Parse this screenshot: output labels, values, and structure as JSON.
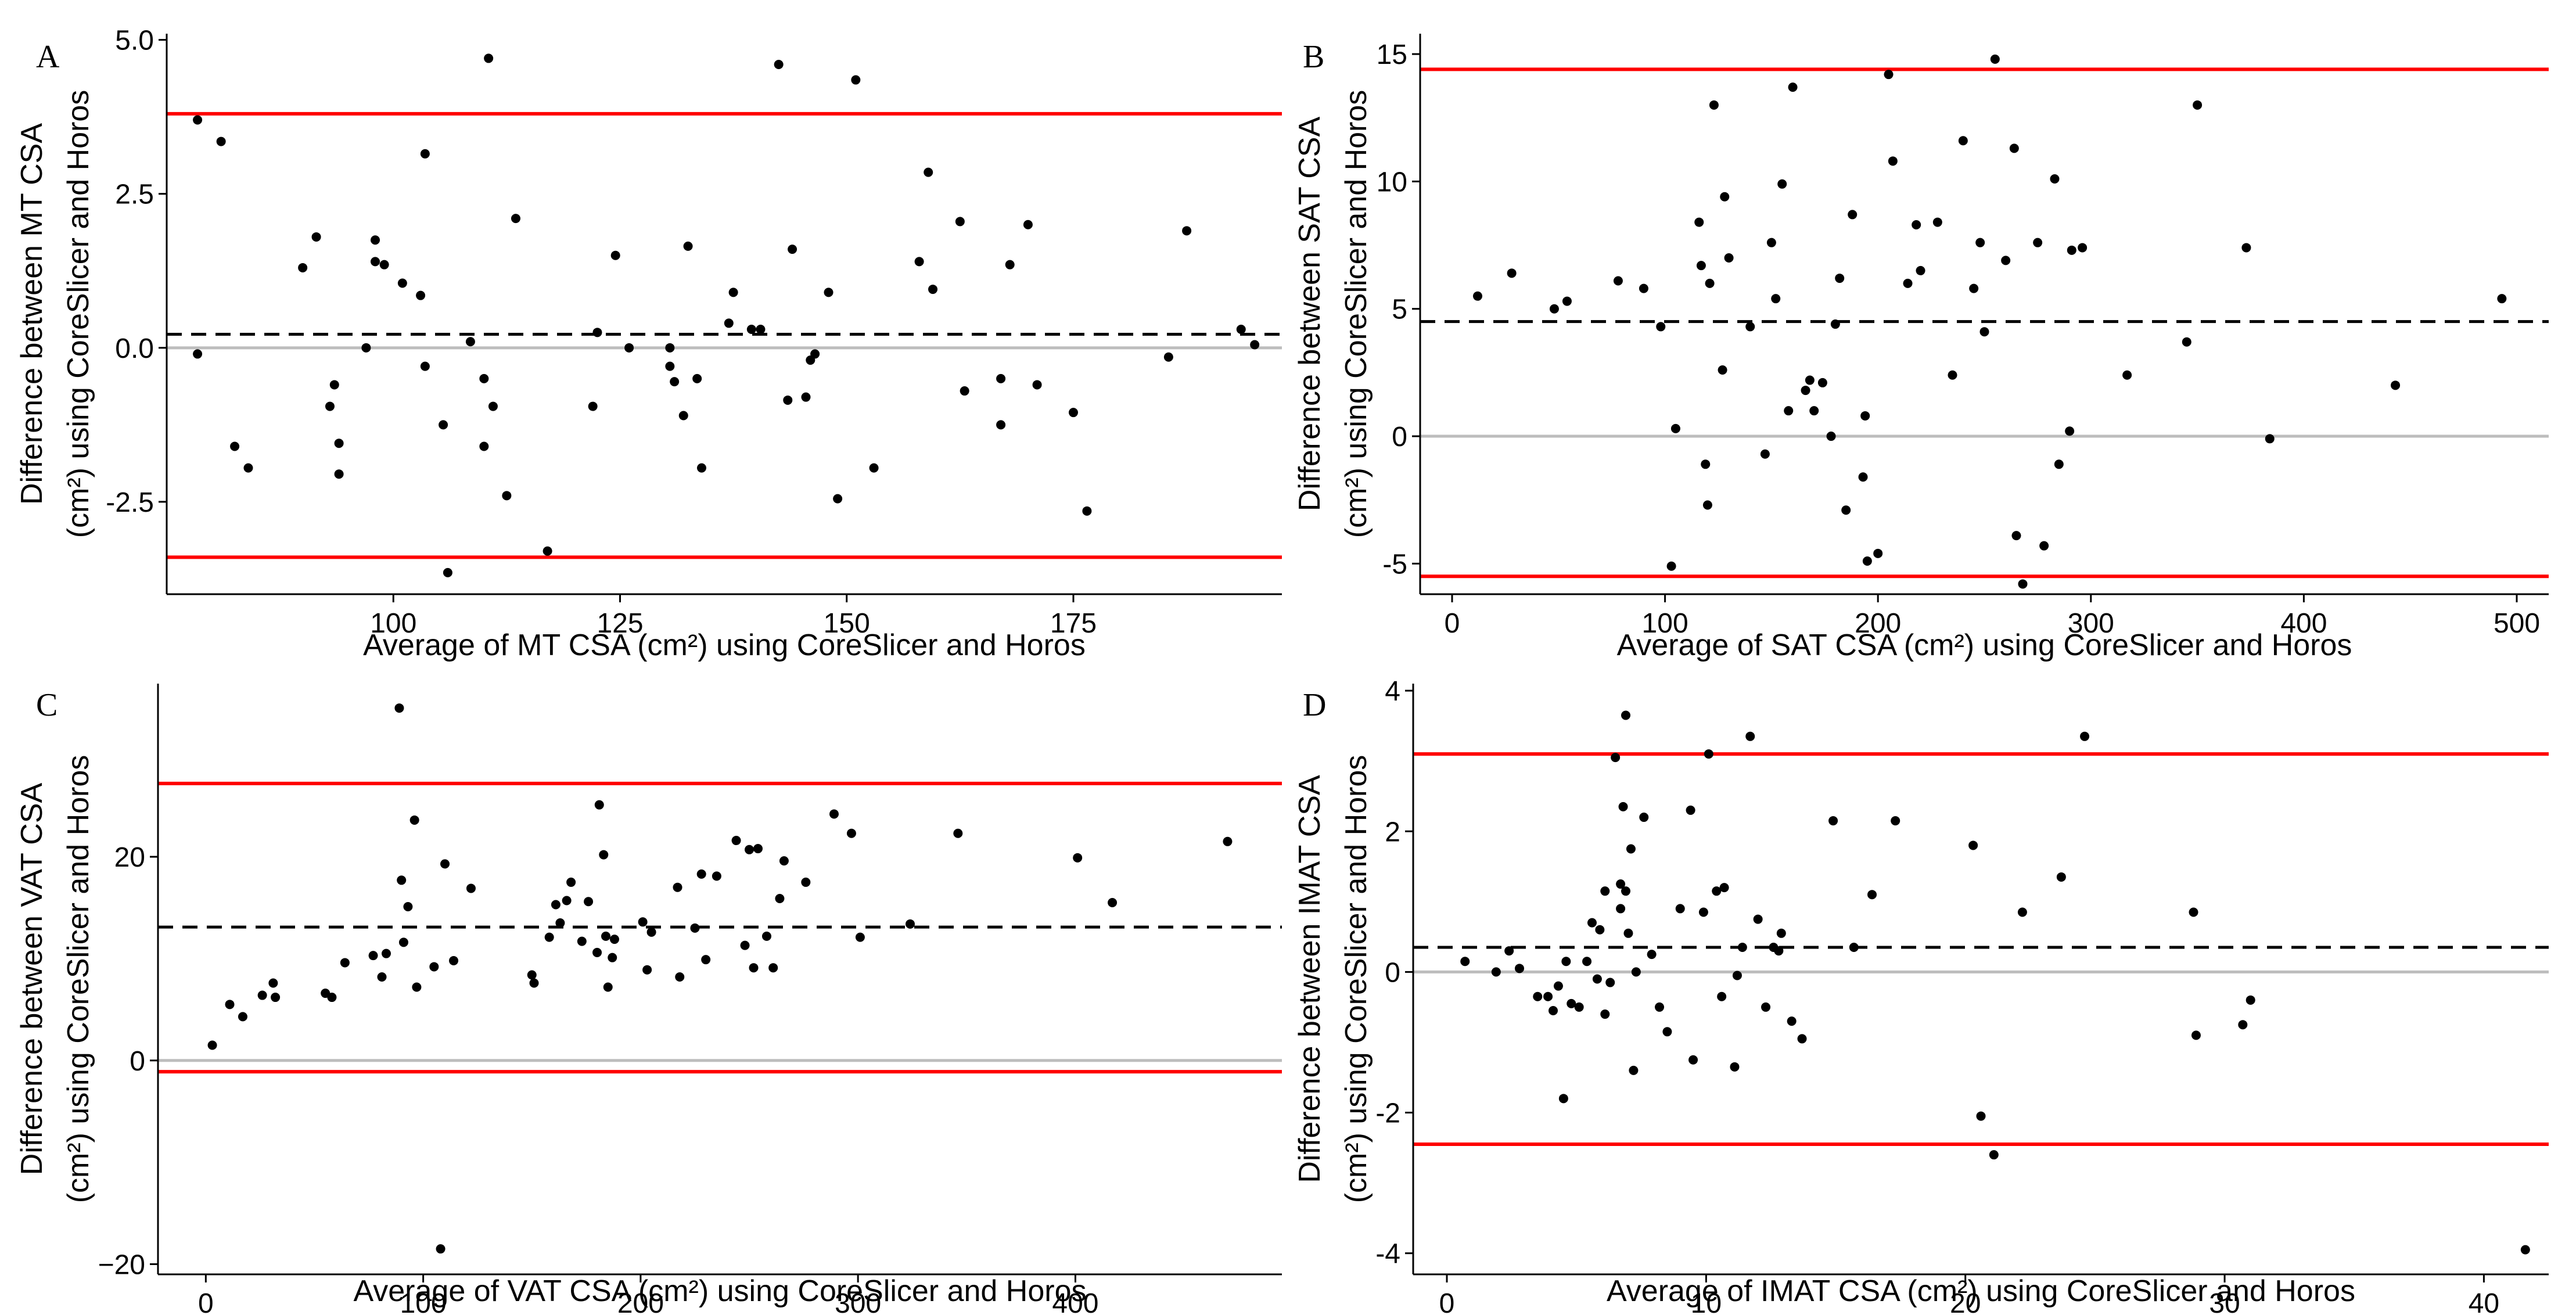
{
  "chart_data": [
    {
      "type": "scatter",
      "panel_label": "A",
      "xlabel": "Average of MT CSA (cm²) using CoreSlicer and Horos",
      "ylabel": [
        "Difference between MT CSA",
        "(cm²) using CoreSlicer and Horos"
      ],
      "xlim": [
        75,
        198
      ],
      "ylim": [
        -4.0,
        5.1
      ],
      "xticks": [
        100,
        125,
        150,
        175
      ],
      "xtick_labels": [
        "100",
        "125",
        "150",
        "175"
      ],
      "yticks": [
        -2.5,
        0.0,
        2.5,
        5.0
      ],
      "ytick_labels": [
        "-2.5",
        "0.0",
        "2.5",
        "5.0"
      ],
      "grid": false,
      "zero_line": 0,
      "mean_line": 0.22,
      "upper_loa": 3.8,
      "lower_loa": -3.4,
      "points": [
        [
          78.4,
          3.7
        ],
        [
          78.4,
          -0.1
        ],
        [
          81,
          3.35
        ],
        [
          82.5,
          -1.6
        ],
        [
          84,
          -1.95
        ],
        [
          90,
          1.3
        ],
        [
          91.5,
          1.8
        ],
        [
          93,
          -0.95
        ],
        [
          93.5,
          -0.6
        ],
        [
          94,
          -1.55
        ],
        [
          94,
          -2.05
        ],
        [
          97,
          0
        ],
        [
          98,
          1.75
        ],
        [
          98,
          1.4
        ],
        [
          99,
          1.35
        ],
        [
          101,
          1.05
        ],
        [
          103,
          0.85
        ],
        [
          103.5,
          3.15
        ],
        [
          103.5,
          -0.3
        ],
        [
          105.5,
          -1.25
        ],
        [
          106,
          -3.65
        ],
        [
          108.5,
          0.1
        ],
        [
          110,
          -1.6
        ],
        [
          110,
          -0.5
        ],
        [
          110.5,
          4.7
        ],
        [
          111,
          -0.95
        ],
        [
          112.5,
          -2.4
        ],
        [
          113.5,
          2.1
        ],
        [
          117,
          -3.3
        ],
        [
          122,
          -0.95
        ],
        [
          122.5,
          0.25
        ],
        [
          124.5,
          1.5
        ],
        [
          126,
          0
        ],
        [
          130.5,
          0
        ],
        [
          130.5,
          -0.3
        ],
        [
          131,
          -0.55
        ],
        [
          132,
          -1.1
        ],
        [
          132.5,
          1.65
        ],
        [
          133.5,
          -0.5
        ],
        [
          134,
          -1.95
        ],
        [
          137,
          0.4
        ],
        [
          137.5,
          0.9
        ],
        [
          139.5,
          0.3
        ],
        [
          140.5,
          0.3
        ],
        [
          142.5,
          4.6
        ],
        [
          143.5,
          -0.85
        ],
        [
          144,
          1.6
        ],
        [
          145.5,
          -0.8
        ],
        [
          146,
          -0.2
        ],
        [
          146.5,
          -0.1
        ],
        [
          148,
          0.9
        ],
        [
          149,
          -2.45
        ],
        [
          151,
          4.35
        ],
        [
          153,
          -1.95
        ],
        [
          158,
          1.4
        ],
        [
          159,
          2.85
        ],
        [
          159.5,
          0.95
        ],
        [
          162.5,
          2.05
        ],
        [
          163,
          -0.7
        ],
        [
          167,
          -0.5
        ],
        [
          167,
          -1.25
        ],
        [
          168,
          1.35
        ],
        [
          170,
          2.0
        ],
        [
          171,
          -0.6
        ],
        [
          175,
          -1.05
        ],
        [
          176.5,
          -2.65
        ],
        [
          185.5,
          -0.15
        ],
        [
          187.5,
          1.9
        ],
        [
          193.5,
          0.3
        ],
        [
          195,
          0.05
        ]
      ]
    },
    {
      "type": "scatter",
      "panel_label": "B",
      "xlabel": "Average of SAT CSA (cm²) using CoreSlicer and Horos",
      "ylabel": [
        "Difference between SAT CSA",
        "(cm²) using CoreSlicer and Horos"
      ],
      "xlim": [
        -15,
        515
      ],
      "ylim": [
        -6.2,
        15.8
      ],
      "xticks": [
        0,
        100,
        200,
        300,
        400,
        500
      ],
      "xtick_labels": [
        "0",
        "100",
        "200",
        "300",
        "400",
        "500"
      ],
      "yticks": [
        -5,
        0,
        5,
        10,
        15
      ],
      "ytick_labels": [
        "-5",
        "0",
        "5",
        "10",
        "15"
      ],
      "grid": false,
      "zero_line": 0,
      "mean_line": 4.5,
      "upper_loa": 14.4,
      "lower_loa": -5.5,
      "points": [
        [
          12,
          5.5
        ],
        [
          28,
          6.4
        ],
        [
          48,
          5
        ],
        [
          54,
          5.3
        ],
        [
          78,
          6.1
        ],
        [
          90,
          5.8
        ],
        [
          98,
          4.3
        ],
        [
          103,
          -5.1
        ],
        [
          105,
          0.3
        ],
        [
          116,
          8.4
        ],
        [
          117,
          6.7
        ],
        [
          119,
          -1.1
        ],
        [
          120,
          -2.7
        ],
        [
          121,
          6
        ],
        [
          123,
          13
        ],
        [
          127,
          2.6
        ],
        [
          128,
          9.4
        ],
        [
          130,
          7
        ],
        [
          140,
          4.3
        ],
        [
          147,
          -0.7
        ],
        [
          150,
          7.6
        ],
        [
          152,
          5.4
        ],
        [
          155,
          9.9
        ],
        [
          158,
          1
        ],
        [
          160,
          13.7
        ],
        [
          166,
          1.8
        ],
        [
          168,
          2.2
        ],
        [
          170,
          1
        ],
        [
          174,
          2.1
        ],
        [
          178,
          0
        ],
        [
          180,
          4.4
        ],
        [
          182,
          6.2
        ],
        [
          185,
          -2.9
        ],
        [
          188,
          8.7
        ],
        [
          193,
          -1.6
        ],
        [
          194,
          0.8
        ],
        [
          195,
          -4.9
        ],
        [
          200,
          -4.6
        ],
        [
          205,
          14.2
        ],
        [
          207,
          10.8
        ],
        [
          214,
          6
        ],
        [
          218,
          8.3
        ],
        [
          220,
          6.5
        ],
        [
          228,
          8.4
        ],
        [
          235,
          2.4
        ],
        [
          240,
          11.6
        ],
        [
          245,
          5.8
        ],
        [
          248,
          7.6
        ],
        [
          250,
          4.1
        ],
        [
          255,
          14.8
        ],
        [
          260,
          6.9
        ],
        [
          264,
          11.3
        ],
        [
          265,
          -3.9
        ],
        [
          268,
          -5.8
        ],
        [
          275,
          7.6
        ],
        [
          278,
          -4.3
        ],
        [
          283,
          10.1
        ],
        [
          285,
          -1.1
        ],
        [
          290,
          0.2
        ],
        [
          291,
          7.3
        ],
        [
          296,
          7.4
        ],
        [
          317,
          2.4
        ],
        [
          345,
          3.7
        ],
        [
          350,
          13
        ],
        [
          373,
          7.4
        ],
        [
          384,
          -0.1
        ],
        [
          443,
          2
        ],
        [
          493,
          5.4
        ]
      ]
    },
    {
      "type": "scatter",
      "panel_label": "C",
      "xlabel": "Average of VAT CSA (cm²) using CoreSlicer and Horos",
      "ylabel": [
        "Difference between VAT CSA",
        "(cm²) using CoreSlicer and Horos"
      ],
      "xlim": [
        -22,
        495
      ],
      "ylim": [
        -21,
        37
      ],
      "xticks": [
        0,
        100,
        200,
        300,
        400
      ],
      "xtick_labels": [
        "0",
        "100",
        "200",
        "300",
        "400"
      ],
      "yticks": [
        -20,
        0,
        20
      ],
      "ytick_labels": [
        "−20",
        "0",
        "20"
      ],
      "grid": false,
      "zero_line": 0,
      "mean_line": 13.1,
      "upper_loa": 27.2,
      "lower_loa": -1.1,
      "points": [
        [
          3,
          1.5
        ],
        [
          11,
          5.5
        ],
        [
          17,
          4.3
        ],
        [
          26,
          6.4
        ],
        [
          31,
          7.6
        ],
        [
          32,
          6.2
        ],
        [
          55,
          6.6
        ],
        [
          58,
          6.2
        ],
        [
          64,
          9.6
        ],
        [
          77,
          10.3
        ],
        [
          81,
          8.2
        ],
        [
          83,
          10.5
        ],
        [
          89,
          34.6
        ],
        [
          90,
          17.7
        ],
        [
          91,
          11.6
        ],
        [
          93,
          15.1
        ],
        [
          96,
          23.6
        ],
        [
          97,
          7.2
        ],
        [
          105,
          9.2
        ],
        [
          108,
          -18.5
        ],
        [
          110,
          19.3
        ],
        [
          114,
          9.8
        ],
        [
          122,
          16.9
        ],
        [
          150,
          8.4
        ],
        [
          151,
          7.6
        ],
        [
          158,
          12.1
        ],
        [
          161,
          15.3
        ],
        [
          163,
          13.5
        ],
        [
          166,
          15.7
        ],
        [
          168,
          17.5
        ],
        [
          173,
          11.7
        ],
        [
          176,
          15.6
        ],
        [
          180,
          10.6
        ],
        [
          181,
          25.1
        ],
        [
          183,
          20.2
        ],
        [
          184,
          12.2
        ],
        [
          185,
          7.2
        ],
        [
          187,
          10.1
        ],
        [
          188,
          11.9
        ],
        [
          201,
          13.6
        ],
        [
          203,
          8.9
        ],
        [
          205,
          12.6
        ],
        [
          217,
          17
        ],
        [
          218,
          8.2
        ],
        [
          225,
          13
        ],
        [
          228,
          18.3
        ],
        [
          230,
          9.9
        ],
        [
          235,
          18.1
        ],
        [
          244,
          21.6
        ],
        [
          248,
          11.3
        ],
        [
          250,
          20.7
        ],
        [
          252,
          9.1
        ],
        [
          254,
          20.8
        ],
        [
          258,
          12.2
        ],
        [
          261,
          9.1
        ],
        [
          264,
          15.9
        ],
        [
          266,
          19.6
        ],
        [
          276,
          17.5
        ],
        [
          289,
          24.2
        ],
        [
          297,
          22.3
        ],
        [
          301,
          12.1
        ],
        [
          324,
          13.4
        ],
        [
          346,
          22.3
        ],
        [
          401,
          19.9
        ],
        [
          417,
          15.5
        ],
        [
          470,
          21.5
        ]
      ]
    },
    {
      "type": "scatter",
      "panel_label": "D",
      "xlabel": "Average of IMAT CSA (cm²) using CoreSlicer and Horos",
      "ylabel": [
        "Difference between IMAT CSA",
        "(cm²) using CoreSlicer and Horos"
      ],
      "xlim": [
        -1.3,
        42.5
      ],
      "ylim": [
        -4.3,
        4.1
      ],
      "xticks": [
        0,
        10,
        20,
        30,
        40
      ],
      "xtick_labels": [
        "0",
        "10",
        "20",
        "30",
        "40"
      ],
      "yticks": [
        -4,
        -2,
        0,
        2,
        4
      ],
      "ytick_labels": [
        "-4",
        "-2",
        "0",
        "2",
        "4"
      ],
      "grid": false,
      "zero_line": 0,
      "mean_line": 0.35,
      "upper_loa": 3.1,
      "lower_loa": -2.45,
      "points": [
        [
          0.7,
          0.15
        ],
        [
          1.9,
          0
        ],
        [
          2.4,
          0.3
        ],
        [
          2.8,
          0.05
        ],
        [
          3.5,
          -0.35
        ],
        [
          3.9,
          -0.35
        ],
        [
          4.1,
          -0.55
        ],
        [
          4.3,
          -0.2
        ],
        [
          4.5,
          -1.8
        ],
        [
          4.6,
          0.15
        ],
        [
          4.8,
          -0.45
        ],
        [
          5.1,
          -0.5
        ],
        [
          5.4,
          0.15
        ],
        [
          5.6,
          0.7
        ],
        [
          5.8,
          -0.1
        ],
        [
          5.9,
          0.6
        ],
        [
          6.1,
          1.15
        ],
        [
          6.1,
          -0.6
        ],
        [
          6.3,
          -0.15
        ],
        [
          6.5,
          3.05
        ],
        [
          6.7,
          0.9
        ],
        [
          6.9,
          3.65
        ],
        [
          6.7,
          1.25
        ],
        [
          6.8,
          2.35
        ],
        [
          6.9,
          1.15
        ],
        [
          7,
          0.55
        ],
        [
          7.1,
          1.75
        ],
        [
          7.2,
          -1.4
        ],
        [
          7.3,
          0
        ],
        [
          7.6,
          2.2
        ],
        [
          7.9,
          0.25
        ],
        [
          8.2,
          -0.5
        ],
        [
          8.5,
          -0.85
        ],
        [
          9,
          0.9
        ],
        [
          9.4,
          2.3
        ],
        [
          9.5,
          -1.25
        ],
        [
          9.9,
          0.85
        ],
        [
          10.1,
          3.1
        ],
        [
          10.4,
          1.15
        ],
        [
          10.6,
          -0.35
        ],
        [
          10.7,
          1.2
        ],
        [
          11.1,
          -1.35
        ],
        [
          11.2,
          -0.05
        ],
        [
          11.4,
          0.35
        ],
        [
          11.7,
          3.35
        ],
        [
          12,
          0.75
        ],
        [
          12.3,
          -0.5
        ],
        [
          12.6,
          0.35
        ],
        [
          12.8,
          0.3
        ],
        [
          12.9,
          0.55
        ],
        [
          13.3,
          -0.7
        ],
        [
          13.7,
          -0.95
        ],
        [
          14.9,
          2.15
        ],
        [
          15.7,
          0.35
        ],
        [
          16.4,
          1.1
        ],
        [
          17.3,
          2.15
        ],
        [
          20.3,
          1.8
        ],
        [
          20.6,
          -2.05
        ],
        [
          21.1,
          -2.6
        ],
        [
          22.2,
          0.85
        ],
        [
          23.7,
          1.35
        ],
        [
          24.6,
          3.35
        ],
        [
          28.8,
          0.85
        ],
        [
          28.9,
          -0.9
        ],
        [
          30.7,
          -0.75
        ],
        [
          31,
          -0.4
        ],
        [
          41.6,
          -3.95
        ]
      ]
    }
  ]
}
